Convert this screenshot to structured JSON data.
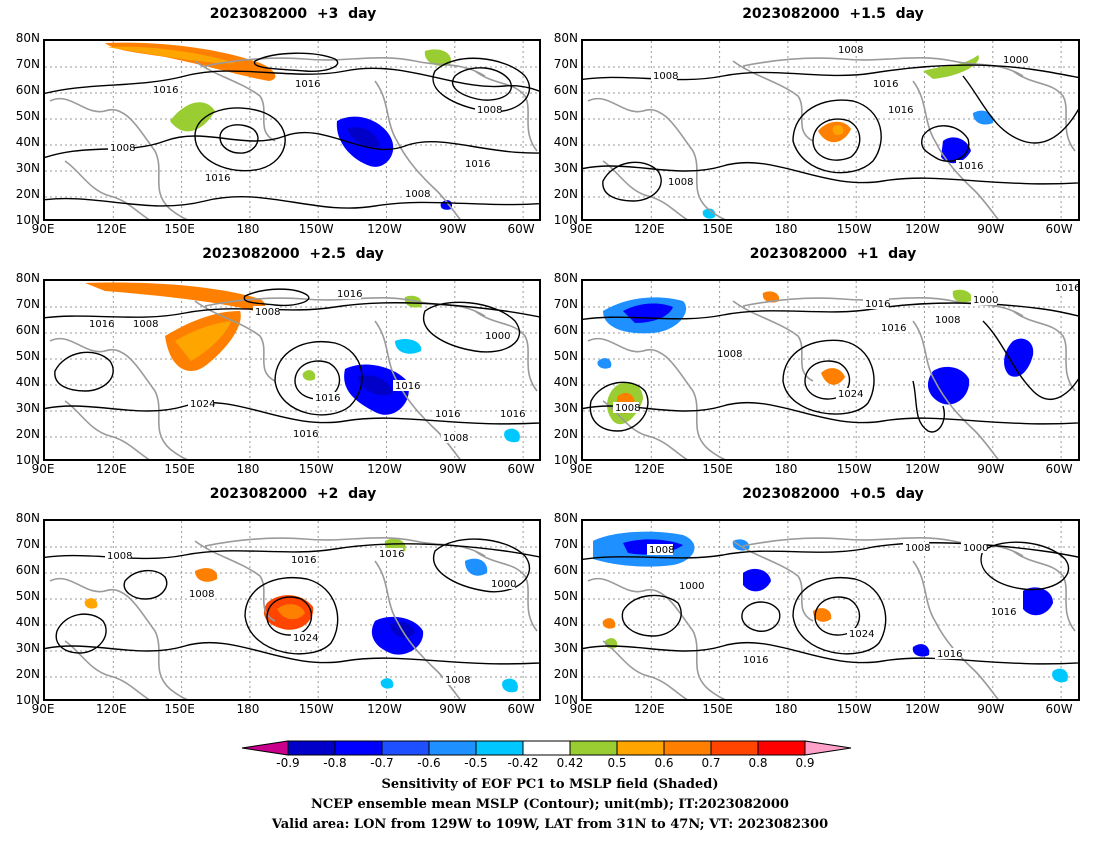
{
  "panels": [
    {
      "title": "2023082000  +3  day"
    },
    {
      "title": "2023082000  +1.5  day"
    },
    {
      "title": "2023082000  +2.5  day"
    },
    {
      "title": "2023082000  +1  day"
    },
    {
      "title": "2023082000  +2  day"
    },
    {
      "title": "2023082000  +0.5  day"
    }
  ],
  "axes": {
    "lat_ticks": [
      "80N",
      "70N",
      "60N",
      "50N",
      "40N",
      "30N",
      "20N",
      "10N"
    ],
    "lon_ticks": [
      "90E",
      "120E",
      "150E",
      "180",
      "150W",
      "120W",
      "90W",
      "60W"
    ]
  },
  "contour_labels": [
    [
      "1016",
      "1016",
      "1008",
      "1008",
      "1016",
      "1016",
      "1008"
    ],
    [
      "1008",
      "1008",
      "1000",
      "1016",
      "1016",
      "1016",
      "1008"
    ],
    [
      "1016",
      "1008",
      "1008",
      "1016",
      "1000",
      "1016",
      "1024",
      "1016",
      "1016",
      "1016",
      "1016",
      "1008"
    ],
    [
      "1016",
      "1000",
      "1016",
      "1008",
      "1016",
      "1008",
      "1024",
      "1008"
    ],
    [
      "1008",
      "1016",
      "1016",
      "1008",
      "1000",
      "1024",
      "1008"
    ],
    [
      "1008",
      "1000",
      "1008",
      "1000",
      "1016",
      "1024",
      "1016",
      "1016"
    ]
  ],
  "colorbar": {
    "labels": [
      "-0.9",
      "-0.8",
      "-0.7",
      "-0.6",
      "-0.5",
      "-0.42",
      "0.42",
      "0.5",
      "0.6",
      "0.7",
      "0.8",
      "0.9"
    ],
    "colors": [
      "#0000c8",
      "#0000ff",
      "#1e50ff",
      "#1e90ff",
      "#00c8ff",
      "#ffffff",
      "#9acd32",
      "#ffa500",
      "#ff7f00",
      "#ff4500",
      "#ff0000"
    ],
    "low_end_color": "#c8008c",
    "high_end_color": "#ffa0c8"
  },
  "captions": [
    "Sensitivity of EOF PC1 to MSLP field (Shaded)",
    "NCEP ensemble mean MSLP (Contour); unit(mb); IT:2023082000",
    "Valid area: LON from 129W to 109W, LAT from 31N to 47N; VT: 2023082300"
  ]
}
